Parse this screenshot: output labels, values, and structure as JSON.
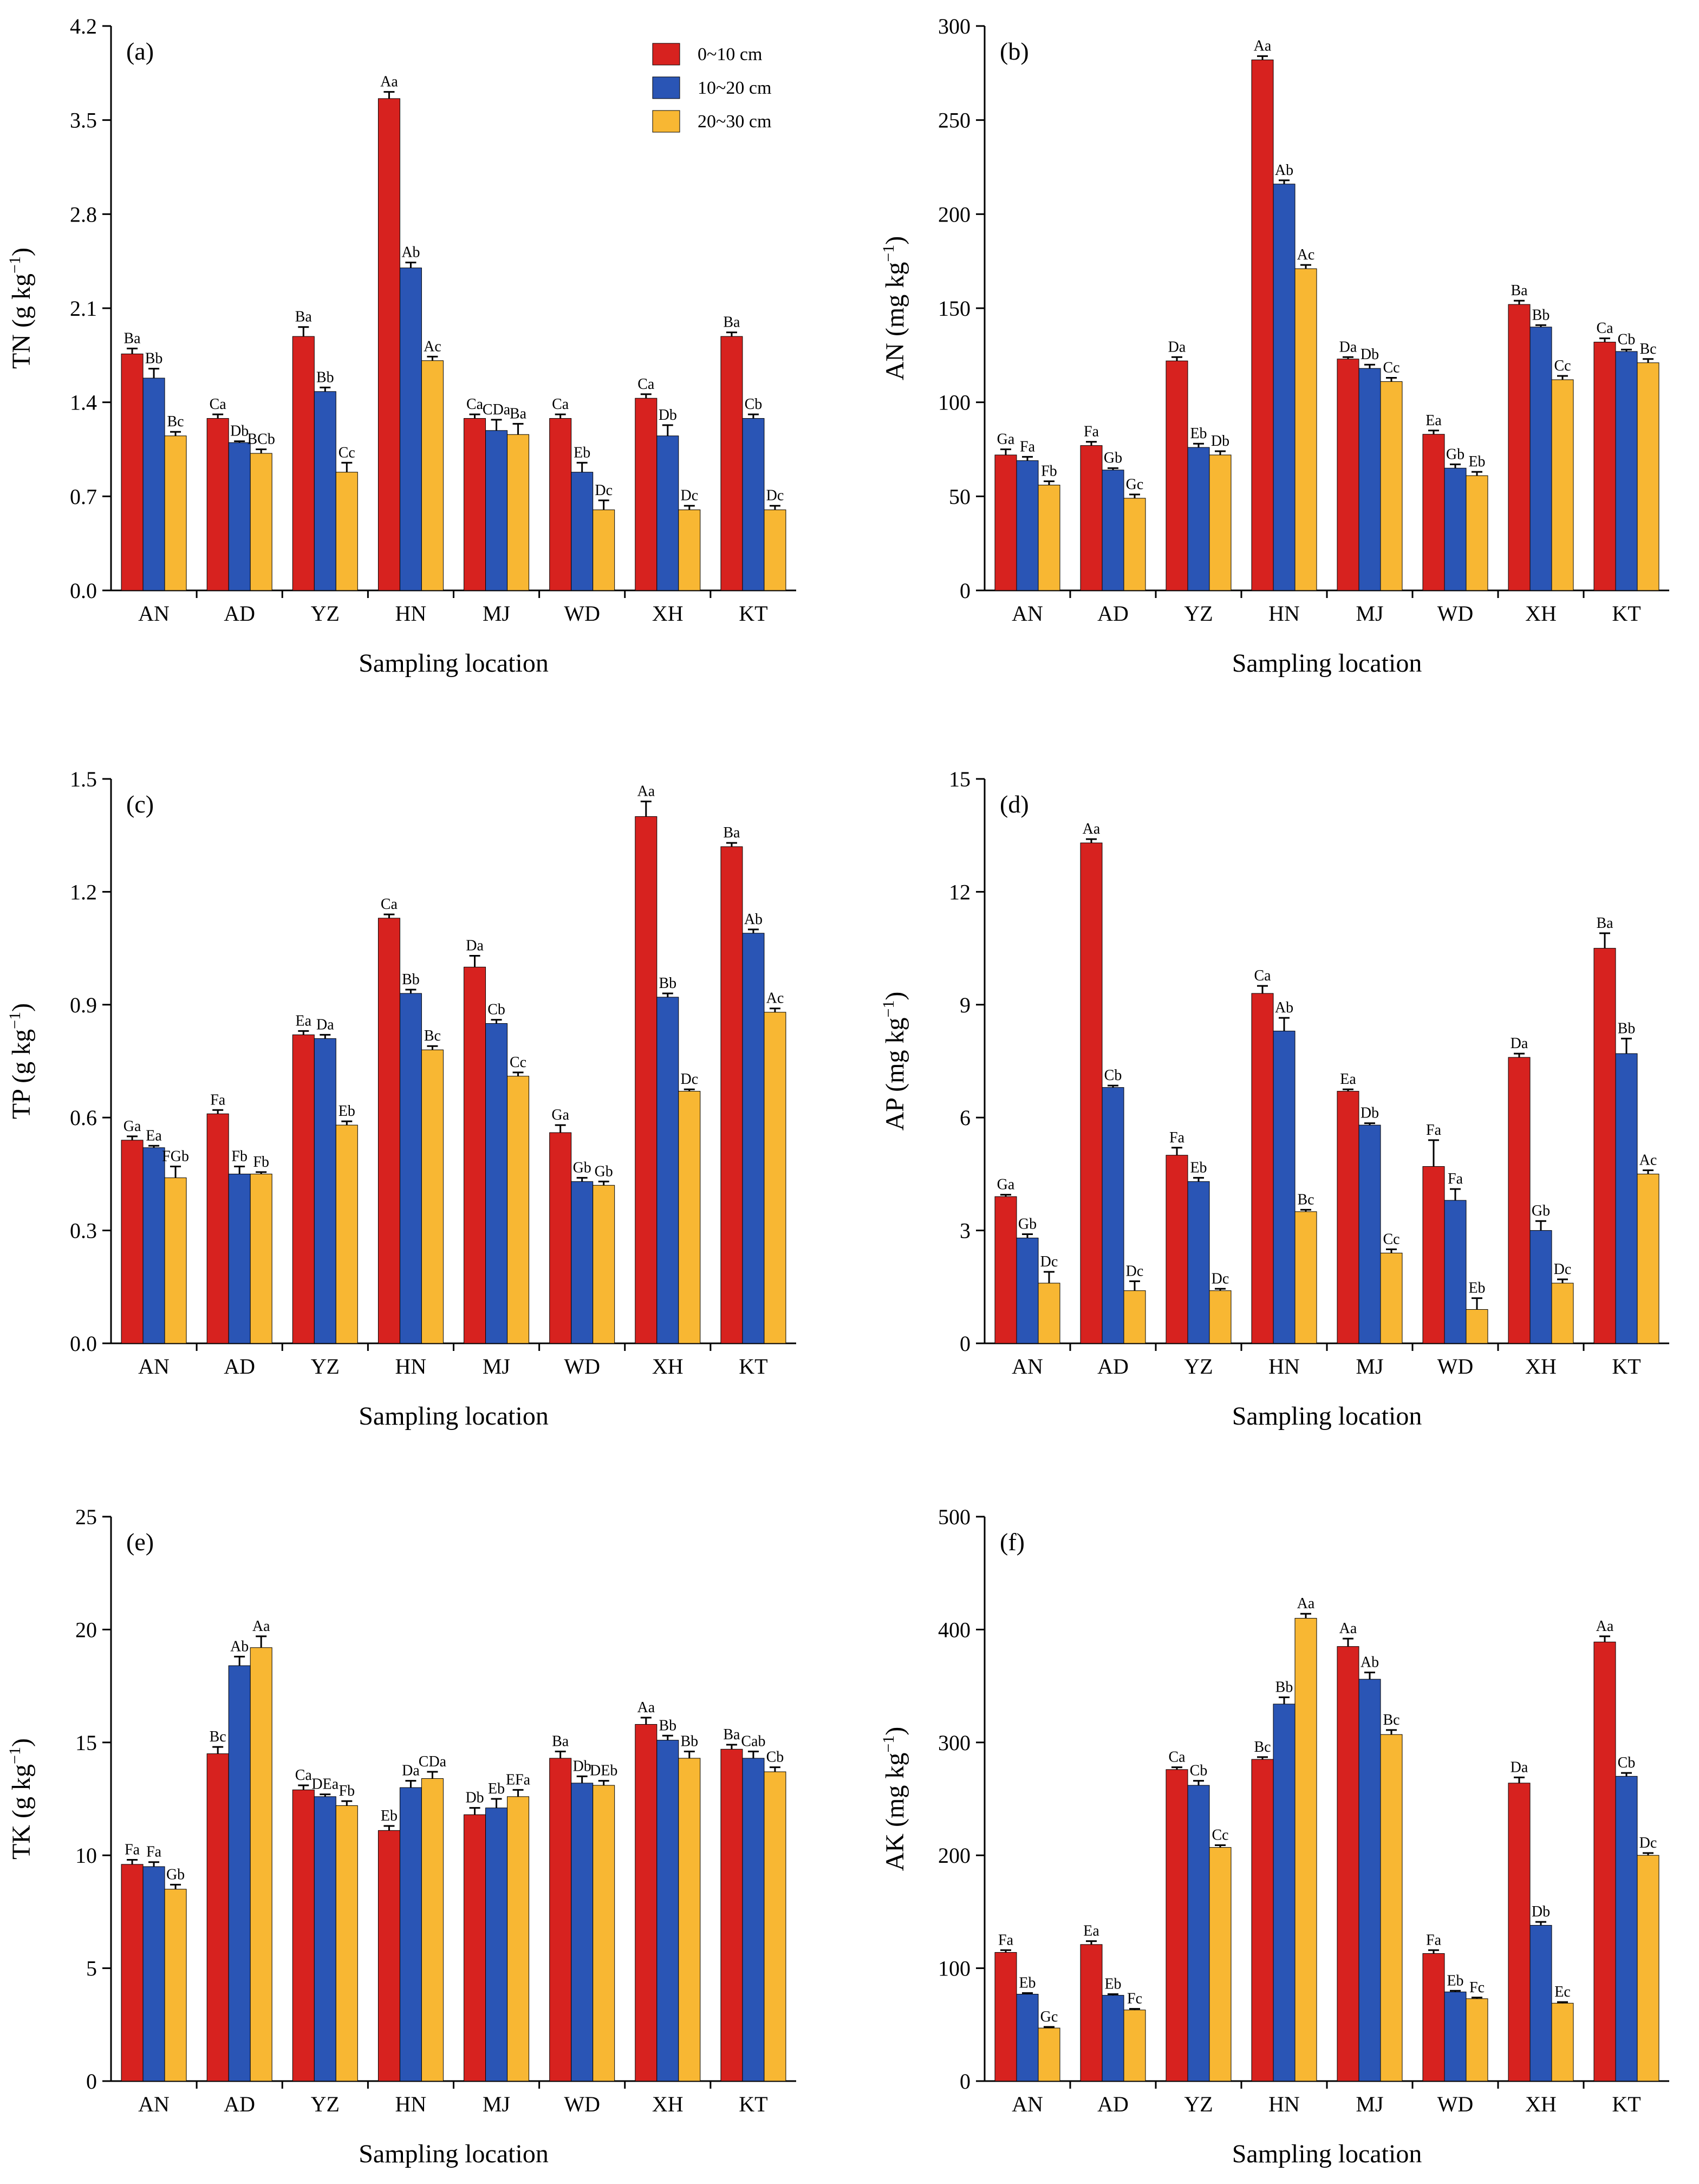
{
  "categories": [
    "AN",
    "AD",
    "YZ",
    "HN",
    "MJ",
    "WD",
    "XH",
    "KT"
  ],
  "series_names": [
    "0~10 cm",
    "10~20 cm",
    "20~30 cm"
  ],
  "series_colors": [
    "#d7221f",
    "#2a55b5",
    "#f8b733"
  ],
  "legend": {
    "labels": [
      "0~10 cm",
      "10~20 cm",
      "20~30 cm"
    ]
  },
  "chart_data": [
    {
      "type": "bar",
      "panel": "(a)",
      "title": "",
      "xlabel": "Sampling location",
      "ylabel_main": "TN (g kg",
      "ylabel_exp": "−1",
      "ylabel_close": ")",
      "ylim": [
        0,
        4.2
      ],
      "yticks": [
        "0.0",
        "0.7",
        "1.4",
        "2.1",
        "2.8",
        "3.5",
        "4.2"
      ],
      "categories": [
        "AN",
        "AD",
        "YZ",
        "HN",
        "MJ",
        "WD",
        "XH",
        "KT"
      ],
      "series": [
        {
          "name": "0~10 cm",
          "values": [
            1.76,
            1.28,
            1.89,
            3.66,
            1.28,
            1.28,
            1.43,
            1.89
          ],
          "errors": [
            0.04,
            0.03,
            0.07,
            0.05,
            0.03,
            0.03,
            0.03,
            0.03
          ],
          "labels": [
            "Ba",
            "Ca",
            "Ba",
            "Aa",
            "Ca",
            "Ca",
            "Ca",
            "Ba"
          ]
        },
        {
          "name": "10~20 cm",
          "values": [
            1.58,
            1.1,
            1.48,
            2.4,
            1.19,
            0.88,
            1.15,
            1.28
          ],
          "errors": [
            0.07,
            0.01,
            0.03,
            0.04,
            0.08,
            0.07,
            0.08,
            0.03
          ],
          "labels": [
            "Bb",
            "Db",
            "Bb",
            "Ab",
            "CDa",
            "Eb",
            "Db",
            "Cb"
          ]
        },
        {
          "name": "20~30 cm",
          "values": [
            1.15,
            1.02,
            0.88,
            1.71,
            1.16,
            0.6,
            0.6,
            0.6
          ],
          "errors": [
            0.03,
            0.03,
            0.07,
            0.03,
            0.08,
            0.07,
            0.03,
            0.03
          ],
          "labels": [
            "Bc",
            "BCb",
            "Cc",
            "Ac",
            "Ba",
            "Dc",
            "Dc",
            "Dc"
          ]
        }
      ]
    },
    {
      "type": "bar",
      "panel": "(b)",
      "title": "",
      "xlabel": "Sampling location",
      "ylabel_main": "AN (mg kg",
      "ylabel_exp": "−1",
      "ylabel_close": ")",
      "ylim": [
        0,
        300
      ],
      "yticks": [
        "0",
        "50",
        "100",
        "150",
        "200",
        "250",
        "300"
      ],
      "categories": [
        "AN",
        "AD",
        "YZ",
        "HN",
        "MJ",
        "WD",
        "XH",
        "KT"
      ],
      "series": [
        {
          "name": "0~10 cm",
          "values": [
            72,
            77,
            122,
            282,
            123,
            83,
            152,
            132
          ],
          "errors": [
            3,
            2,
            2,
            2,
            1,
            2,
            2,
            2
          ],
          "labels": [
            "Ga",
            "Fa",
            "Da",
            "Aa",
            "Da",
            "Ea",
            "Ba",
            "Ca"
          ]
        },
        {
          "name": "10~20 cm",
          "values": [
            69,
            64,
            76,
            216,
            118,
            65,
            140,
            127
          ],
          "errors": [
            2,
            1,
            2,
            2,
            2,
            2,
            1,
            1
          ],
          "labels": [
            "Fa",
            "Gb",
            "Eb",
            "Ab",
            "Db",
            "Gb",
            "Bb",
            "Cb"
          ]
        },
        {
          "name": "20~30 cm",
          "values": [
            56,
            49,
            72,
            171,
            111,
            61,
            112,
            121
          ],
          "errors": [
            2,
            2,
            2,
            2,
            2,
            2,
            2,
            2
          ],
          "labels": [
            "Fb",
            "Gc",
            "Db",
            "Ac",
            "Cc",
            "Eb",
            "Cc",
            "Bc"
          ]
        }
      ]
    },
    {
      "type": "bar",
      "panel": "(c)",
      "title": "",
      "xlabel": "Sampling location",
      "ylabel_main": "TP (g kg",
      "ylabel_exp": "−1",
      "ylabel_close": ")",
      "ylim": [
        0,
        1.5
      ],
      "yticks": [
        "0.0",
        "0.3",
        "0.6",
        "0.9",
        "1.2",
        "1.5"
      ],
      "categories": [
        "AN",
        "AD",
        "YZ",
        "HN",
        "MJ",
        "WD",
        "XH",
        "KT"
      ],
      "series": [
        {
          "name": "0~10 cm",
          "values": [
            0.54,
            0.61,
            0.82,
            1.13,
            1.0,
            0.56,
            1.4,
            1.32
          ],
          "errors": [
            0.01,
            0.01,
            0.01,
            0.01,
            0.03,
            0.02,
            0.04,
            0.01
          ],
          "labels": [
            "Ga",
            "Fa",
            "Ea",
            "Ca",
            "Da",
            "Ga",
            "Aa",
            "Ba"
          ]
        },
        {
          "name": "10~20 cm",
          "values": [
            0.52,
            0.45,
            0.81,
            0.93,
            0.85,
            0.43,
            0.92,
            1.09
          ],
          "errors": [
            0.005,
            0.02,
            0.01,
            0.01,
            0.01,
            0.01,
            0.01,
            0.01
          ],
          "labels": [
            "Ea",
            "Fb",
            "Da",
            "Bb",
            "Cb",
            "Gb",
            "Bb",
            "Ab"
          ]
        },
        {
          "name": "20~30 cm",
          "values": [
            0.44,
            0.45,
            0.58,
            0.78,
            0.71,
            0.42,
            0.67,
            0.88
          ],
          "errors": [
            0.03,
            0.005,
            0.01,
            0.01,
            0.01,
            0.01,
            0.005,
            0.01
          ],
          "labels": [
            "FGb",
            "Fb",
            "Eb",
            "Bc",
            "Cc",
            "Gb",
            "Dc",
            "Ac"
          ]
        }
      ]
    },
    {
      "type": "bar",
      "panel": "(d)",
      "title": "",
      "xlabel": "Sampling location",
      "ylabel_main": "AP (mg kg",
      "ylabel_exp": "−1",
      "ylabel_close": ")",
      "ylim": [
        0,
        15
      ],
      "yticks": [
        "0",
        "3",
        "6",
        "9",
        "12",
        "15"
      ],
      "categories": [
        "AN",
        "AD",
        "YZ",
        "HN",
        "MJ",
        "WD",
        "XH",
        "KT"
      ],
      "series": [
        {
          "name": "0~10 cm",
          "values": [
            3.9,
            13.3,
            5.0,
            9.3,
            6.7,
            4.7,
            7.6,
            10.5
          ],
          "errors": [
            0.05,
            0.1,
            0.2,
            0.2,
            0.05,
            0.7,
            0.1,
            0.4
          ],
          "labels": [
            "Ga",
            "Aa",
            "Fa",
            "Ca",
            "Ea",
            "Fa",
            "Da",
            "Ba"
          ]
        },
        {
          "name": "10~20 cm",
          "values": [
            2.8,
            6.8,
            4.3,
            8.3,
            5.8,
            3.8,
            3.0,
            7.7
          ],
          "errors": [
            0.1,
            0.05,
            0.1,
            0.35,
            0.05,
            0.3,
            0.25,
            0.4
          ],
          "labels": [
            "Gb",
            "Cb",
            "Eb",
            "Ab",
            "Db",
            "Fa",
            "Gb",
            "Bb"
          ]
        },
        {
          "name": "20~30 cm",
          "values": [
            1.6,
            1.4,
            1.4,
            3.5,
            2.4,
            0.9,
            1.6,
            4.5
          ],
          "errors": [
            0.3,
            0.25,
            0.05,
            0.05,
            0.1,
            0.3,
            0.1,
            0.1
          ],
          "labels": [
            "Dc",
            "Dc",
            "Dc",
            "Bc",
            "Cc",
            "Eb",
            "Dc",
            "Ac"
          ]
        }
      ]
    },
    {
      "type": "bar",
      "panel": "(e)",
      "title": "",
      "xlabel": "Sampling location",
      "ylabel_main": "TK (g kg",
      "ylabel_exp": "−1",
      "ylabel_close": ")",
      "ylim": [
        0,
        25
      ],
      "yticks": [
        "0",
        "5",
        "10",
        "15",
        "20",
        "25"
      ],
      "categories": [
        "AN",
        "AD",
        "YZ",
        "HN",
        "MJ",
        "WD",
        "XH",
        "KT"
      ],
      "series": [
        {
          "name": "0~10 cm",
          "values": [
            9.6,
            14.5,
            12.9,
            11.1,
            11.8,
            14.3,
            15.8,
            14.7
          ],
          "errors": [
            0.2,
            0.3,
            0.2,
            0.2,
            0.3,
            0.3,
            0.3,
            0.2
          ],
          "labels": [
            "Fa",
            "Bc",
            "Ca",
            "Eb",
            "Db",
            "Ba",
            "Aa",
            "Ba"
          ]
        },
        {
          "name": "10~20 cm",
          "values": [
            9.5,
            18.4,
            12.6,
            13.0,
            12.1,
            13.2,
            15.1,
            14.3
          ],
          "errors": [
            0.2,
            0.4,
            0.1,
            0.3,
            0.4,
            0.3,
            0.2,
            0.3
          ],
          "labels": [
            "Fa",
            "Ab",
            "DEa",
            "Da",
            "Eb",
            "Db",
            "Bb",
            "Cab"
          ]
        },
        {
          "name": "20~30 cm",
          "values": [
            8.5,
            19.2,
            12.2,
            13.4,
            12.6,
            13.1,
            14.3,
            13.7
          ],
          "errors": [
            0.2,
            0.5,
            0.2,
            0.3,
            0.3,
            0.2,
            0.3,
            0.2
          ],
          "labels": [
            "Gb",
            "Aa",
            "Fb",
            "CDa",
            "EFa",
            "DEb",
            "Bb",
            "Cb"
          ]
        }
      ]
    },
    {
      "type": "bar",
      "panel": "(f)",
      "title": "",
      "xlabel": "Sampling location",
      "ylabel_main": "AK (mg kg",
      "ylabel_exp": "−1",
      "ylabel_close": ")",
      "ylim": [
        0,
        500
      ],
      "yticks": [
        "0",
        "100",
        "200",
        "300",
        "400",
        "500"
      ],
      "categories": [
        "AN",
        "AD",
        "YZ",
        "HN",
        "MJ",
        "WD",
        "XH",
        "KT"
      ],
      "series": [
        {
          "name": "0~10 cm",
          "values": [
            114,
            121,
            276,
            285,
            385,
            113,
            264,
            389
          ],
          "errors": [
            2,
            3,
            2,
            2,
            7,
            3,
            5,
            5
          ],
          "labels": [
            "Fa",
            "Ea",
            "Ca",
            "Bc",
            "Aa",
            "Fa",
            "Da",
            "Aa"
          ]
        },
        {
          "name": "10~20 cm",
          "values": [
            77,
            76,
            262,
            334,
            356,
            79,
            138,
            270
          ],
          "errors": [
            1,
            1,
            4,
            6,
            6,
            1,
            3,
            3
          ],
          "labels": [
            "Eb",
            "Eb",
            "Cb",
            "Bb",
            "Ab",
            "Eb",
            "Db",
            "Cb"
          ]
        },
        {
          "name": "20~30 cm",
          "values": [
            47,
            63,
            207,
            410,
            307,
            73,
            69,
            200
          ],
          "errors": [
            1,
            1,
            2,
            4,
            4,
            1,
            1,
            2
          ],
          "labels": [
            "Gc",
            "Fc",
            "Cc",
            "Aa",
            "Bc",
            "Fc",
            "Ec",
            "Dc"
          ]
        }
      ]
    }
  ]
}
